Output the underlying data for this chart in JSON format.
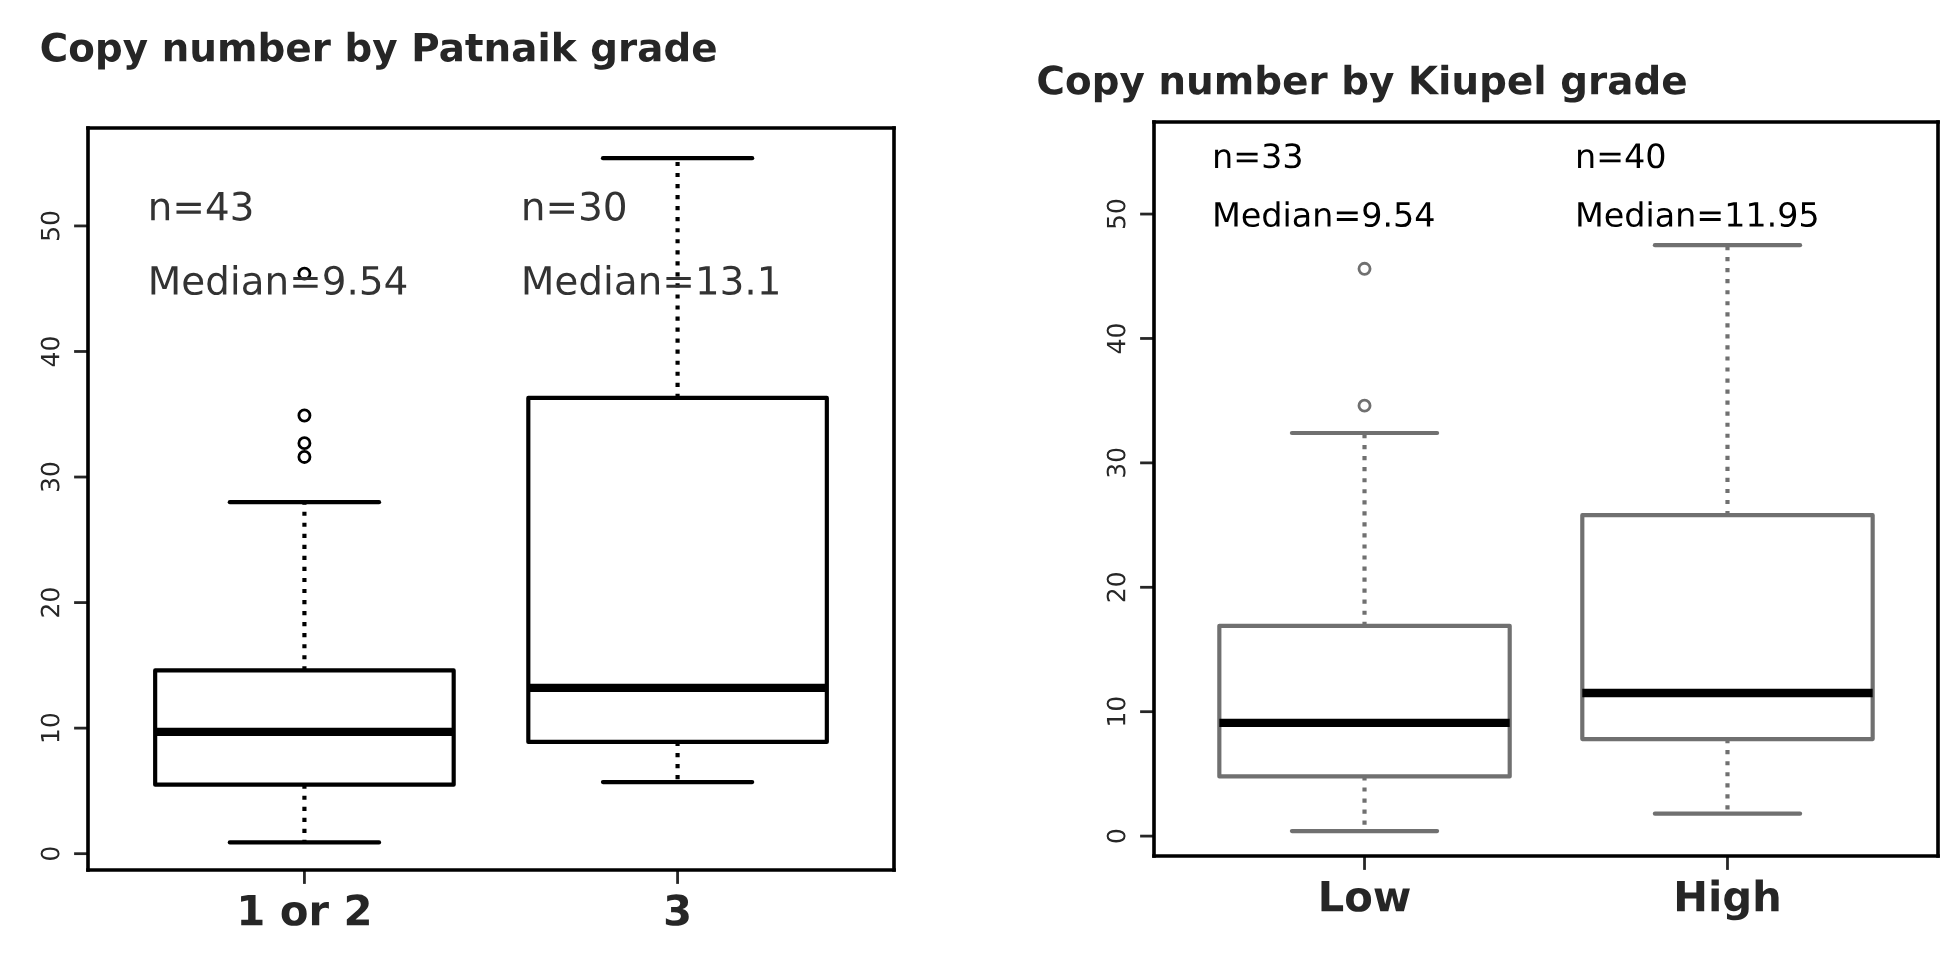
{
  "chart_data": [
    {
      "type": "box",
      "title": "Copy number by Patnaik grade",
      "categories": [
        "1 or 2",
        "3"
      ],
      "ylim": [
        -1.3,
        57.8
      ],
      "yticks": [
        0,
        10,
        20,
        30,
        40,
        50
      ],
      "series": [
        {
          "color": "#000000",
          "boxes": [
            {
              "low": 0.9,
              "q1": 5.5,
              "median": 9.7,
              "q3": 14.6,
              "high": 28.0,
              "outliers": [
                31.6,
                32.7,
                34.9,
                46.2
              ]
            },
            {
              "low": 5.7,
              "q1": 8.9,
              "median": 13.2,
              "q3": 36.3,
              "high": 55.4
            }
          ]
        }
      ],
      "annotations": [
        "n=43",
        "Median=9.54",
        "n=30",
        "Median=13.1"
      ]
    },
    {
      "type": "box",
      "title": "Copy number by Kiupel grade",
      "categories": [
        "Low",
        "High"
      ],
      "ylim": [
        -1.6,
        57.4
      ],
      "yticks": [
        0,
        10,
        20,
        30,
        40,
        50
      ],
      "series": [
        {
          "color": "#707070",
          "boxes": [
            {
              "low": 0.4,
              "q1": 4.8,
              "median": 9.1,
              "q3": 16.9,
              "high": 32.4,
              "outliers": [
                34.6,
                45.6
              ]
            },
            {
              "low": 1.8,
              "q1": 7.8,
              "median": 11.5,
              "q3": 25.8,
              "high": 47.5
            }
          ]
        }
      ],
      "annotations": [
        "n=33",
        "Median=9.54",
        "n=40",
        "Median=11.95"
      ]
    }
  ]
}
